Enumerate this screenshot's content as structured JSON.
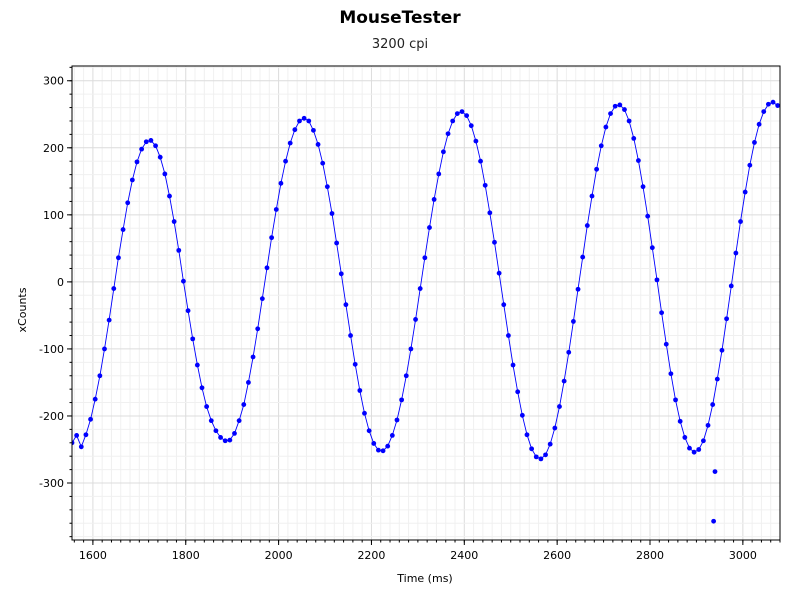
{
  "chart_data": {
    "type": "scatter",
    "title": "MouseTester",
    "subtitle": "3200 cpi",
    "xlabel": "Time (ms)",
    "ylabel": "xCounts",
    "xlim": [
      1555,
      3080
    ],
    "ylim": [
      -385,
      322
    ],
    "x_ticks": [
      1600,
      1800,
      2000,
      2200,
      2400,
      2600,
      2800,
      3000
    ],
    "y_ticks": [
      300,
      200,
      100,
      0,
      -100,
      -200,
      -300
    ],
    "grid": true,
    "legend": "none",
    "series": [
      {
        "style": "markers+line",
        "color": "#0000ff",
        "points": [
          [
            1555,
            -240
          ],
          [
            1565,
            -229
          ],
          [
            1575,
            -246
          ],
          [
            1585,
            -228
          ],
          [
            1595,
            -205
          ],
          [
            1605,
            -175
          ],
          [
            1615,
            -140
          ],
          [
            1625,
            -100
          ],
          [
            1635,
            -57
          ],
          [
            1645,
            -10
          ],
          [
            1655,
            36
          ],
          [
            1665,
            78
          ],
          [
            1675,
            118
          ],
          [
            1685,
            152
          ],
          [
            1695,
            179
          ],
          [
            1705,
            198
          ],
          [
            1715,
            209
          ],
          [
            1725,
            211
          ],
          [
            1735,
            203
          ],
          [
            1745,
            186
          ],
          [
            1755,
            161
          ],
          [
            1765,
            128
          ],
          [
            1775,
            90
          ],
          [
            1785,
            47
          ],
          [
            1795,
            1
          ],
          [
            1805,
            -43
          ],
          [
            1815,
            -85
          ],
          [
            1825,
            -124
          ],
          [
            1835,
            -158
          ],
          [
            1845,
            -186
          ],
          [
            1855,
            -207
          ],
          [
            1865,
            -222
          ],
          [
            1875,
            -232
          ],
          [
            1885,
            -237
          ],
          [
            1895,
            -236
          ],
          [
            1905,
            -226
          ],
          [
            1915,
            -207
          ],
          [
            1925,
            -183
          ],
          [
            1935,
            -150
          ],
          [
            1945,
            -112
          ],
          [
            1955,
            -70
          ],
          [
            1965,
            -25
          ],
          [
            1975,
            21
          ],
          [
            1985,
            66
          ],
          [
            1995,
            108
          ],
          [
            2005,
            147
          ],
          [
            2015,
            180
          ],
          [
            2025,
            207
          ],
          [
            2035,
            227
          ],
          [
            2045,
            240
          ],
          [
            2055,
            244
          ],
          [
            2065,
            240
          ],
          [
            2075,
            226
          ],
          [
            2085,
            205
          ],
          [
            2095,
            177
          ],
          [
            2105,
            142
          ],
          [
            2115,
            102
          ],
          [
            2125,
            58
          ],
          [
            2135,
            12
          ],
          [
            2145,
            -34
          ],
          [
            2155,
            -80
          ],
          [
            2165,
            -123
          ],
          [
            2175,
            -162
          ],
          [
            2185,
            -196
          ],
          [
            2195,
            -222
          ],
          [
            2205,
            -241
          ],
          [
            2215,
            -251
          ],
          [
            2225,
            -252
          ],
          [
            2235,
            -245
          ],
          [
            2245,
            -229
          ],
          [
            2255,
            -206
          ],
          [
            2265,
            -176
          ],
          [
            2275,
            -140
          ],
          [
            2285,
            -100
          ],
          [
            2295,
            -56
          ],
          [
            2305,
            -10
          ],
          [
            2315,
            36
          ],
          [
            2325,
            81
          ],
          [
            2335,
            123
          ],
          [
            2345,
            161
          ],
          [
            2355,
            194
          ],
          [
            2365,
            221
          ],
          [
            2375,
            240
          ],
          [
            2385,
            251
          ],
          [
            2395,
            254
          ],
          [
            2405,
            248
          ],
          [
            2415,
            233
          ],
          [
            2425,
            210
          ],
          [
            2435,
            180
          ],
          [
            2445,
            144
          ],
          [
            2455,
            103
          ],
          [
            2465,
            59
          ],
          [
            2475,
            13
          ],
          [
            2485,
            -34
          ],
          [
            2495,
            -80
          ],
          [
            2505,
            -124
          ],
          [
            2515,
            -164
          ],
          [
            2525,
            -199
          ],
          [
            2535,
            -228
          ],
          [
            2545,
            -249
          ],
          [
            2555,
            -261
          ],
          [
            2565,
            -264
          ],
          [
            2575,
            -258
          ],
          [
            2585,
            -242
          ],
          [
            2595,
            -218
          ],
          [
            2605,
            -186
          ],
          [
            2615,
            -148
          ],
          [
            2625,
            -105
          ],
          [
            2635,
            -59
          ],
          [
            2645,
            -11
          ],
          [
            2655,
            37
          ],
          [
            2665,
            84
          ],
          [
            2675,
            128
          ],
          [
            2685,
            168
          ],
          [
            2695,
            203
          ],
          [
            2705,
            231
          ],
          [
            2715,
            251
          ],
          [
            2725,
            262
          ],
          [
            2735,
            264
          ],
          [
            2745,
            257
          ],
          [
            2755,
            240
          ],
          [
            2765,
            214
          ],
          [
            2775,
            181
          ],
          [
            2785,
            142
          ],
          [
            2795,
            98
          ],
          [
            2805,
            51
          ],
          [
            2815,
            3
          ],
          [
            2825,
            -46
          ],
          [
            2835,
            -93
          ],
          [
            2845,
            -137
          ],
          [
            2855,
            -176
          ],
          [
            2865,
            -208
          ],
          [
            2875,
            -232
          ],
          [
            2885,
            -248
          ],
          [
            2895,
            -254
          ],
          [
            2905,
            -250
          ],
          [
            2915,
            -237
          ],
          [
            2925,
            -214
          ],
          [
            2935,
            -183
          ],
          [
            2945,
            -145
          ],
          [
            2955,
            -102
          ],
          [
            2965,
            -55
          ],
          [
            2975,
            -6
          ],
          [
            2985,
            43
          ],
          [
            2995,
            90
          ],
          [
            3005,
            134
          ],
          [
            3015,
            174
          ],
          [
            3025,
            208
          ],
          [
            3035,
            235
          ],
          [
            3045,
            254
          ],
          [
            3055,
            265
          ],
          [
            3065,
            268
          ],
          [
            3075,
            263
          ]
        ]
      }
    ],
    "outliers": [
      [
        2940,
        -283
      ],
      [
        2937,
        -357
      ]
    ]
  }
}
